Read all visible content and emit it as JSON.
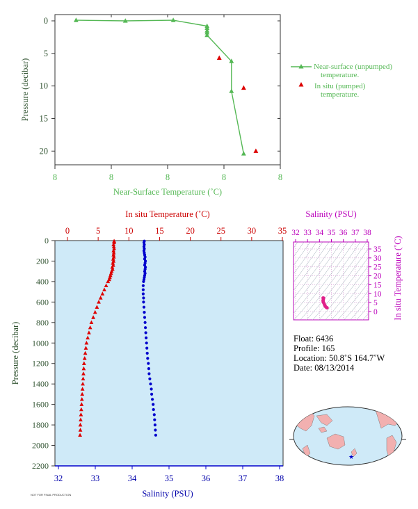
{
  "chart_data": [
    {
      "id": "near_surface",
      "type": "line",
      "xlabel": "Near-Surface Temperature (˚C)",
      "ylabel": "Pressure (decibar)",
      "x_tick_labels": [
        "8",
        "8",
        "8",
        "8",
        "8"
      ],
      "y_ticks": [
        0,
        5,
        10,
        15,
        20
      ],
      "ylim": [
        0,
        22
      ],
      "y_inverted": true,
      "series": [
        {
          "name": "Near-surface (unpumped) temperature.",
          "marker": "triangle",
          "color": "#55b855",
          "x": [
            7.225,
            7.75,
            8.26,
            8.62,
            8.62,
            8.62,
            8.62,
            8.62,
            8.88,
            8.88,
            9.01
          ],
          "y": [
            -0.1,
            0.0,
            -0.1,
            0.8,
            1.1,
            1.5,
            1.8,
            2.2,
            6.2,
            10.8,
            20.4
          ]
        },
        {
          "name": "In situ (pumped) temperature.",
          "marker": "triangle",
          "color": "#dd0000",
          "x": [
            8.75,
            9.01,
            9.14
          ],
          "y": [
            5.7,
            10.3,
            20.0
          ]
        }
      ],
      "legend_text": {
        "a1": "Near-surface (unpumped)",
        "a2": "temperature.",
        "b1": "In situ (pumped)",
        "b2": "temperature."
      }
    },
    {
      "id": "profile",
      "type": "scatter",
      "ylabel": "Pressure (decibar)",
      "top_xlabel": "In situ Temperature (˚C)",
      "bottom_xlabel": "Salinity (PSU)",
      "temp_ticks": [
        0,
        5,
        10,
        15,
        20,
        25,
        30,
        35
      ],
      "sal_ticks": [
        32,
        33,
        34,
        35,
        36,
        37,
        38
      ],
      "p_ticks": [
        0,
        200,
        400,
        600,
        800,
        1000,
        1200,
        1400,
        1600,
        1800,
        2000,
        2200
      ],
      "temp_range": [
        -2,
        35
      ],
      "sal_range": [
        32,
        38
      ],
      "p_range": [
        0,
        2200
      ],
      "temperature_series": {
        "name": "In situ Temperature",
        "color": "#dd0000",
        "p": [
          5,
          20,
          40,
          60,
          80,
          100,
          120,
          140,
          160,
          180,
          200,
          220,
          240,
          260,
          280,
          300,
          320,
          340,
          360,
          380,
          400,
          440,
          480,
          520,
          560,
          600,
          650,
          700,
          750,
          800,
          850,
          900,
          950,
          1000,
          1050,
          1100,
          1150,
          1200,
          1250,
          1300,
          1350,
          1400,
          1450,
          1500,
          1550,
          1600,
          1650,
          1700,
          1750,
          1800,
          1850,
          1900
        ],
        "t": [
          7.6,
          7.6,
          7.5,
          7.55,
          7.6,
          7.5,
          7.55,
          7.5,
          7.55,
          7.45,
          7.5,
          7.4,
          7.45,
          7.3,
          7.35,
          7.2,
          7.1,
          7.0,
          6.9,
          6.8,
          6.6,
          6.3,
          6.0,
          5.7,
          5.4,
          5.1,
          4.8,
          4.5,
          4.2,
          3.9,
          3.7,
          3.5,
          3.3,
          3.1,
          3.0,
          2.9,
          2.8,
          2.7,
          2.65,
          2.6,
          2.55,
          2.5,
          2.45,
          2.4,
          2.35,
          2.3,
          2.25,
          2.2,
          2.15,
          2.1,
          2.1,
          2.05
        ]
      },
      "salinity_series": {
        "name": "Salinity",
        "color": "#0000cc",
        "p": [
          5,
          20,
          40,
          60,
          80,
          100,
          120,
          140,
          160,
          180,
          200,
          220,
          240,
          260,
          280,
          300,
          320,
          340,
          360,
          380,
          400,
          440,
          480,
          520,
          560,
          600,
          650,
          700,
          750,
          800,
          850,
          900,
          950,
          1000,
          1050,
          1100,
          1150,
          1200,
          1250,
          1300,
          1350,
          1400,
          1450,
          1500,
          1550,
          1600,
          1650,
          1700,
          1750,
          1800,
          1850,
          1900
        ],
        "s": [
          34.33,
          34.32,
          34.33,
          34.32,
          34.33,
          34.32,
          34.33,
          34.34,
          34.35,
          34.34,
          34.36,
          34.35,
          34.34,
          34.36,
          34.35,
          34.34,
          34.35,
          34.34,
          34.33,
          34.32,
          34.31,
          34.3,
          34.3,
          34.3,
          34.31,
          34.31,
          34.32,
          34.33,
          34.34,
          34.35,
          34.36,
          34.37,
          34.38,
          34.39,
          34.4,
          34.41,
          34.42,
          34.44,
          34.45,
          34.46,
          34.48,
          34.5,
          34.52,
          34.53,
          34.55,
          34.57,
          34.58,
          34.6,
          34.61,
          34.62,
          34.63,
          34.64
        ]
      }
    },
    {
      "id": "ts_diagram",
      "type": "scatter",
      "xlabel": "Salinity (PSU)",
      "ylabel": "In situ Temperature (˚C)",
      "sal_ticks": [
        32,
        33,
        34,
        35,
        36,
        37,
        38
      ],
      "temp_ticks": [
        0,
        5,
        10,
        15,
        20,
        25,
        30,
        35
      ],
      "color": "#e0218a",
      "points": [
        [
          34.3,
          7.6
        ],
        [
          34.35,
          7.5
        ],
        [
          34.33,
          7.0
        ],
        [
          34.31,
          6.5
        ],
        [
          34.3,
          6.0
        ],
        [
          34.31,
          5.5
        ],
        [
          34.34,
          5.0
        ],
        [
          34.38,
          4.5
        ],
        [
          34.41,
          4.0
        ],
        [
          34.44,
          3.5
        ],
        [
          34.48,
          3.0
        ],
        [
          34.53,
          2.6
        ],
        [
          34.58,
          2.3
        ],
        [
          34.62,
          2.1
        ],
        [
          34.64,
          2.05
        ]
      ]
    }
  ],
  "float_info": {
    "float": "Float:  6436",
    "profile": "Profile:  165",
    "location": "Location:  50.8˚S  164.7˚W",
    "date": "Date:  08/13/2014"
  },
  "map": {
    "marker": "float-location-star",
    "marker_color": "#0000cc"
  },
  "footer_label": "NOT FOR FINAL PRODUCTION"
}
